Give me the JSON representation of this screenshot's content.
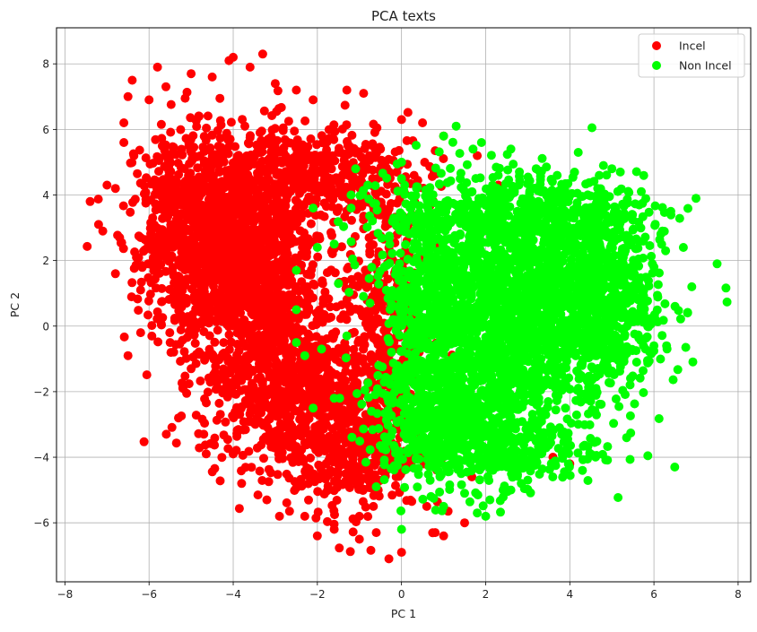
{
  "chart_data": {
    "type": "scatter",
    "title": "PCA texts",
    "xlabel": "PC 1",
    "ylabel": "PC 2",
    "xlim": [
      -8.2,
      8.3
    ],
    "ylim": [
      -7.8,
      9.1
    ],
    "xticks": [
      -8,
      -6,
      -4,
      -2,
      0,
      2,
      4,
      6,
      8
    ],
    "yticks": [
      -6,
      -4,
      -2,
      0,
      2,
      4,
      6,
      8
    ],
    "grid": true,
    "legend_position": "top-right",
    "series": [
      {
        "name": "Incel",
        "color": "#ff0000",
        "points": [
          [
            -7.4,
            3.8
          ],
          [
            -7.2,
            3.1
          ],
          [
            -7.1,
            2.9
          ],
          [
            -7.0,
            4.3
          ],
          [
            -6.8,
            1.6
          ],
          [
            -6.7,
            2.7
          ],
          [
            -6.6,
            5.6
          ],
          [
            -6.5,
            7.0
          ],
          [
            -6.4,
            7.5
          ],
          [
            -6.3,
            2.1
          ],
          [
            -6.2,
            -0.2
          ],
          [
            -6.5,
            -0.9
          ],
          [
            -6.0,
            6.9
          ],
          [
            -5.8,
            7.9
          ],
          [
            -5.6,
            7.3
          ],
          [
            -5.3,
            -2.8
          ],
          [
            -5.0,
            7.7
          ],
          [
            -4.5,
            7.6
          ],
          [
            -4.1,
            8.1
          ],
          [
            -4.0,
            8.2
          ],
          [
            -3.6,
            7.9
          ],
          [
            -3.3,
            8.3
          ],
          [
            -3.0,
            7.4
          ],
          [
            -2.5,
            7.2
          ],
          [
            -2.1,
            6.9
          ],
          [
            -1.3,
            7.2
          ],
          [
            -0.9,
            7.1
          ],
          [
            -6.6,
            6.2
          ],
          [
            -6.8,
            4.2
          ],
          [
            -6.2,
            1.1
          ],
          [
            -5.5,
            -0.5
          ],
          [
            -5.0,
            -1.3
          ],
          [
            -4.7,
            -3.3
          ],
          [
            -4.0,
            -3.9
          ],
          [
            -3.8,
            -4.8
          ],
          [
            -3.2,
            -5.3
          ],
          [
            -2.9,
            -5.8
          ],
          [
            -2.3,
            -5.8
          ],
          [
            -2.0,
            -6.4
          ],
          [
            -1.6,
            -6.2
          ],
          [
            -1.0,
            -6.5
          ],
          [
            -0.6,
            -6.3
          ],
          [
            -0.3,
            -7.1
          ],
          [
            0.0,
            -6.9
          ],
          [
            0.8,
            -6.3
          ],
          [
            1.0,
            -6.4
          ],
          [
            1.5,
            -6.0
          ],
          [
            0.5,
            6.2
          ],
          [
            0.0,
            6.3
          ],
          [
            1.0,
            5.8
          ],
          [
            1.8,
            5.2
          ],
          [
            2.3,
            4.3
          ],
          [
            3.6,
            -4.0
          ],
          [
            4.0,
            -4.2
          ],
          [
            -1.5,
            5.3
          ],
          [
            -2.7,
            5.6
          ],
          [
            -0.5,
            5.4
          ],
          [
            0.3,
            4.6
          ],
          [
            -1.0,
            -5.8
          ],
          [
            0.6,
            -5.5
          ]
        ],
        "clusters": [
          {
            "center": [
              -3.9,
              2.2
            ],
            "spread": [
              0.95,
              1.45
            ],
            "count": 1300
          },
          {
            "center": [
              -2.8,
              -1.5
            ],
            "spread": [
              1.0,
              1.35
            ],
            "count": 750
          },
          {
            "center": [
              -1.3,
              -3.5
            ],
            "spread": [
              0.9,
              1.1
            ],
            "count": 500
          },
          {
            "center": [
              -2.4,
              4.7
            ],
            "spread": [
              1.3,
              0.75
            ],
            "count": 450
          },
          {
            "center": [
              -0.3,
              0.7
            ],
            "spread": [
              0.55,
              2.1
            ],
            "count": 380
          },
          {
            "center": [
              -5.2,
              3.3
            ],
            "spread": [
              0.55,
              1.4
            ],
            "count": 350
          }
        ]
      },
      {
        "name": "Non Incel",
        "color": "#00ff00",
        "points": [
          [
            7.5,
            1.9
          ],
          [
            7.0,
            3.9
          ],
          [
            6.9,
            1.2
          ],
          [
            6.8,
            0.4
          ],
          [
            6.7,
            2.4
          ],
          [
            6.5,
            0.6
          ],
          [
            6.3,
            -0.6
          ],
          [
            6.0,
            -0.6
          ],
          [
            6.4,
            3.5
          ],
          [
            6.2,
            2.9
          ],
          [
            5.7,
            4.1
          ],
          [
            5.2,
            4.7
          ],
          [
            5.0,
            4.8
          ],
          [
            4.8,
            4.9
          ],
          [
            4.7,
            4.6
          ],
          [
            4.2,
            5.3
          ],
          [
            3.7,
            4.6
          ],
          [
            3.2,
            4.8
          ],
          [
            2.6,
            5.4
          ],
          [
            1.9,
            5.6
          ],
          [
            1.7,
            5.4
          ],
          [
            1.3,
            6.1
          ],
          [
            1.0,
            5.8
          ],
          [
            2.3,
            4.6
          ],
          [
            -2.1,
            3.6
          ],
          [
            -2.0,
            2.4
          ],
          [
            -2.5,
            1.7
          ],
          [
            -2.5,
            0.5
          ],
          [
            -2.5,
            -0.5
          ],
          [
            -2.3,
            -0.9
          ],
          [
            -1.9,
            -0.7
          ],
          [
            -2.1,
            -2.5
          ],
          [
            -1.6,
            -2.2
          ],
          [
            -1.3,
            -0.3
          ],
          [
            -1.5,
            1.3
          ],
          [
            -1.6,
            2.5
          ],
          [
            -1.2,
            3.6
          ],
          [
            -1.2,
            4.0
          ],
          [
            -0.8,
            4.3
          ],
          [
            0.0,
            4.5
          ],
          [
            0.0,
            5.0
          ],
          [
            4.3,
            -4.4
          ],
          [
            3.0,
            -4.7
          ],
          [
            2.6,
            -5.0
          ],
          [
            2.1,
            -5.3
          ],
          [
            2.0,
            -5.8
          ],
          [
            1.8,
            -5.7
          ],
          [
            1.5,
            -5.1
          ],
          [
            1.0,
            -5.5
          ],
          [
            0.7,
            -5.2
          ],
          [
            0.0,
            -6.2
          ],
          [
            -0.6,
            -4.9
          ],
          [
            5.8,
            -0.7
          ],
          [
            6.0,
            1.8
          ]
        ],
        "clusters": [
          {
            "center": [
              2.9,
              0.6
            ],
            "spread": [
              1.35,
              1.65
            ],
            "count": 1700
          },
          {
            "center": [
              1.1,
              -2.6
            ],
            "spread": [
              0.85,
              1.1
            ],
            "count": 550
          },
          {
            "center": [
              2.7,
              3.4
            ],
            "spread": [
              1.5,
              0.55
            ],
            "count": 420
          },
          {
            "center": [
              4.8,
              0.8
            ],
            "spread": [
              0.7,
              1.4
            ],
            "count": 450
          },
          {
            "center": [
              0.6,
              0.8
            ],
            "spread": [
              0.5,
              1.9
            ],
            "count": 380
          },
          {
            "center": [
              2.2,
              -3.7
            ],
            "spread": [
              1.3,
              0.6
            ],
            "count": 280
          }
        ]
      }
    ]
  }
}
